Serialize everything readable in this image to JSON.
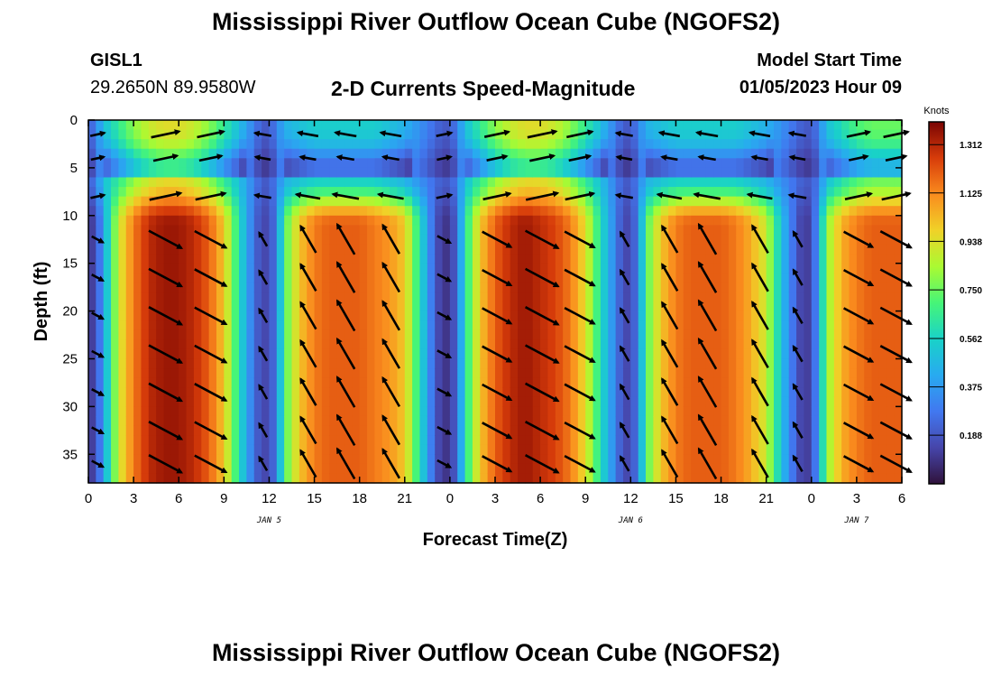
{
  "page": {
    "title_top": "Mississippi River Outflow Ocean Cube (NGOFS2)",
    "title_bottom": "Mississippi River Outflow Ocean Cube (NGOFS2)",
    "station_id": "GISL1",
    "station_coords": "29.2650N  89.9580W",
    "subtitle": "2-D Currents Speed-Magnitude",
    "model_start_label": "Model Start Time",
    "model_start_value": "01/05/2023 Hour 09"
  },
  "chart_data": {
    "type": "heatmap",
    "xlabel": "Forecast Time(Z)",
    "ylabel": "Depth (ft)",
    "x_range_hours": [
      0,
      54
    ],
    "y_range_ft": [
      0,
      38
    ],
    "x_tick_labels": [
      "0",
      "3",
      "6",
      "9",
      "12",
      "15",
      "18",
      "21",
      "0",
      "3",
      "6",
      "9",
      "12",
      "15",
      "18",
      "21",
      "0",
      "3",
      "6"
    ],
    "y_ticks": [
      0,
      5,
      10,
      15,
      20,
      25,
      30,
      35
    ],
    "date_labels": [
      {
        "text": "JAN 5",
        "hour": 12
      },
      {
        "text": "JAN 6",
        "hour": 36
      },
      {
        "text": "JAN 7",
        "hour": 51
      }
    ],
    "colorbar": {
      "label": "Knots",
      "min": 0.0,
      "max": 1.4,
      "ticks": [
        "0.188",
        "0.375",
        "0.562",
        "0.750",
        "0.938",
        "1.125",
        "1.312"
      ],
      "tick_values": [
        0.188,
        0.375,
        0.562,
        0.75,
        0.938,
        1.125,
        1.312
      ],
      "colormap": "turbo"
    },
    "speed_profile": {
      "columns_hours": [
        0,
        0.5,
        1,
        2,
        3,
        4,
        5,
        6,
        7,
        8,
        9,
        10,
        11,
        11.5,
        12,
        12.5,
        13,
        14,
        15,
        16,
        17,
        18,
        19,
        20,
        21,
        22,
        23,
        23.5,
        24,
        24.5,
        25,
        26,
        27,
        28,
        29,
        30,
        31,
        32,
        33,
        34,
        35,
        35.5,
        36,
        36.5,
        37,
        38,
        39,
        40,
        41,
        42,
        43,
        44,
        45,
        46,
        47,
        47.5,
        48,
        48.5,
        49,
        50,
        51,
        52,
        53,
        54
      ],
      "bottom_layer_knots": [
        0.1,
        0.15,
        0.4,
        0.9,
        1.15,
        1.3,
        1.35,
        1.35,
        1.3,
        1.2,
        1.0,
        0.6,
        0.25,
        0.15,
        0.15,
        0.3,
        0.7,
        1.0,
        1.15,
        1.2,
        1.2,
        1.2,
        1.15,
        1.1,
        1.0,
        0.6,
        0.2,
        0.1,
        0.1,
        0.25,
        0.6,
        1.0,
        1.2,
        1.3,
        1.35,
        1.3,
        1.25,
        1.15,
        0.95,
        0.6,
        0.3,
        0.15,
        0.15,
        0.3,
        0.7,
        1.0,
        1.15,
        1.2,
        1.2,
        1.2,
        1.15,
        1.05,
        0.9,
        0.5,
        0.2,
        0.1,
        0.15,
        0.4,
        0.8,
        1.05,
        1.15,
        1.2,
        1.2,
        1.2
      ],
      "top_layer_knots": [
        0.2,
        0.3,
        0.5,
        0.65,
        0.8,
        0.9,
        0.95,
        0.95,
        0.9,
        0.8,
        0.65,
        0.5,
        0.3,
        0.2,
        0.2,
        0.3,
        0.45,
        0.5,
        0.55,
        0.55,
        0.55,
        0.55,
        0.55,
        0.5,
        0.45,
        0.35,
        0.25,
        0.2,
        0.2,
        0.3,
        0.5,
        0.65,
        0.8,
        0.9,
        0.95,
        0.95,
        0.9,
        0.8,
        0.65,
        0.5,
        0.3,
        0.2,
        0.2,
        0.3,
        0.45,
        0.5,
        0.55,
        0.55,
        0.55,
        0.55,
        0.55,
        0.5,
        0.45,
        0.35,
        0.25,
        0.2,
        0.2,
        0.3,
        0.5,
        0.6,
        0.7,
        0.75,
        0.75,
        0.75
      ]
    },
    "vector_depths_ft": [
      1.5,
      4,
      8,
      12.5,
      16.5,
      20.5,
      24.5,
      28.5,
      32.5,
      36
    ],
    "vector_times_hours": [
      0,
      4.5,
      7.5,
      11,
      14,
      16.5,
      19.5,
      23,
      26.5,
      29.5,
      32,
      35,
      38,
      40.5,
      44,
      46.5,
      50.5,
      53
    ]
  }
}
